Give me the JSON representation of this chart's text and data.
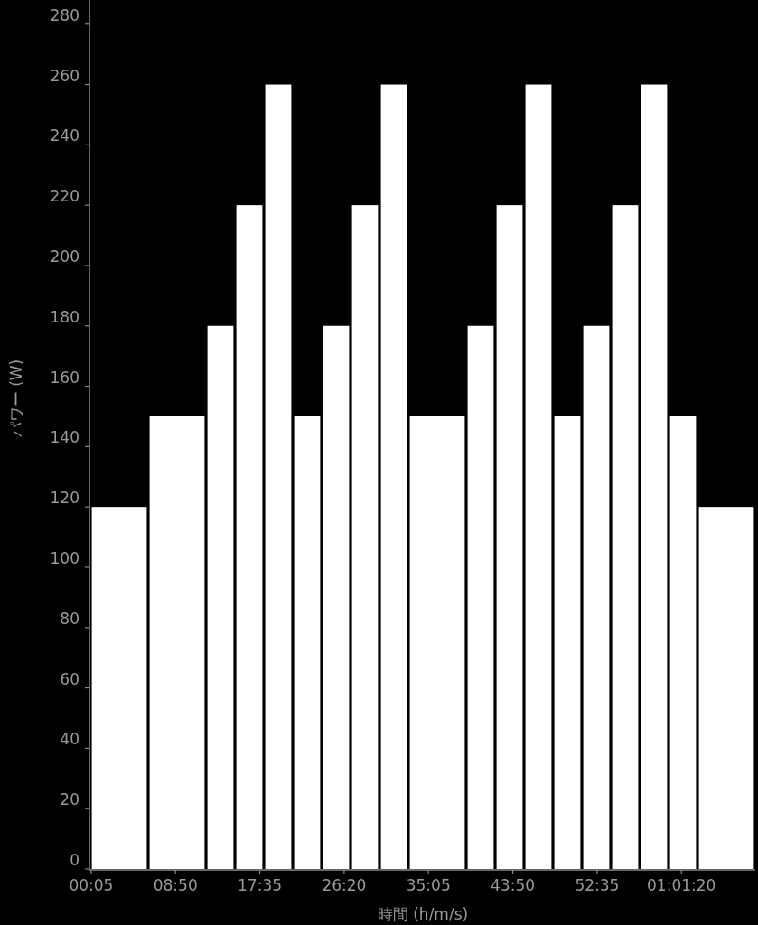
{
  "chart_data": {
    "type": "histogram",
    "xlabel": "時間 (h/m/s)",
    "ylabel": "パワー (W)",
    "color": "#ffffff",
    "bins": [
      0,
      6,
      12,
      15,
      18,
      21,
      24,
      27,
      30,
      33,
      39,
      42,
      45,
      48,
      51,
      54,
      57,
      60,
      63,
      69
    ],
    "values": [
      120,
      150,
      180,
      220,
      260,
      150,
      180,
      220,
      260,
      150,
      180,
      220,
      260,
      150,
      180,
      220,
      260,
      150,
      120
    ],
    "xlim": [
      0,
      69
    ],
    "ylim": [
      0,
      288
    ],
    "xticks": [
      {
        "value": 0.0833,
        "label": "00:05"
      },
      {
        "value": 8.833,
        "label": "08:50"
      },
      {
        "value": 17.583,
        "label": "17:35"
      },
      {
        "value": 26.333,
        "label": "26:20"
      },
      {
        "value": 35.083,
        "label": "35:05"
      },
      {
        "value": 43.833,
        "label": "43:50"
      },
      {
        "value": 52.583,
        "label": "52:35"
      },
      {
        "value": 61.333,
        "label": "01:01:20"
      }
    ],
    "yticks": [
      0,
      20,
      40,
      60,
      80,
      100,
      120,
      140,
      160,
      180,
      200,
      220,
      240,
      260,
      280
    ]
  }
}
